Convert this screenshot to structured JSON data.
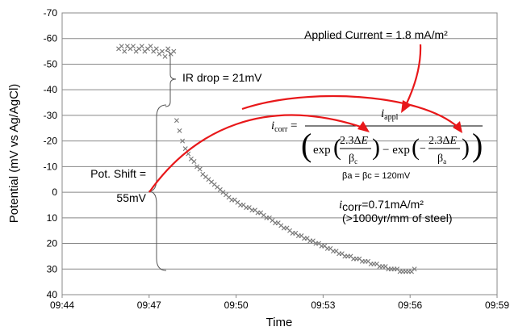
{
  "chart_data": {
    "type": "scatter",
    "xlabel": "Time",
    "ylabel": "Potential (mV vs Ag/AgCl)",
    "x_ticks": [
      "09:44",
      "09:47",
      "09:50",
      "09:53",
      "09:56",
      "09:59"
    ],
    "xlim_minutes": [
      0,
      15
    ],
    "ylim": [
      40,
      -70
    ],
    "y_reversed": true,
    "y_ticks": [
      -70,
      -60,
      -50,
      -40,
      -30,
      -20,
      -10,
      0,
      10,
      20,
      30,
      40
    ],
    "grid": "horizontal",
    "series": [
      {
        "marker": "x",
        "color": "#777777",
        "x_unit": "minutes after 09:44",
        "points": [
          [
            1.95,
            -56
          ],
          [
            2.05,
            -57
          ],
          [
            2.15,
            -55
          ],
          [
            2.25,
            -57
          ],
          [
            2.35,
            -56
          ],
          [
            2.45,
            -57
          ],
          [
            2.55,
            -55
          ],
          [
            2.65,
            -56
          ],
          [
            2.75,
            -57
          ],
          [
            2.85,
            -55
          ],
          [
            2.95,
            -56
          ],
          [
            3.05,
            -57
          ],
          [
            3.15,
            -55
          ],
          [
            3.25,
            -56
          ],
          [
            3.35,
            -54
          ],
          [
            3.45,
            -55
          ],
          [
            3.55,
            -53
          ],
          [
            3.65,
            -56
          ],
          [
            3.75,
            -54
          ],
          [
            3.85,
            -55
          ],
          [
            3.95,
            -28
          ],
          [
            4.05,
            -24
          ],
          [
            4.15,
            -20
          ],
          [
            4.25,
            -17
          ],
          [
            4.35,
            -15
          ],
          [
            4.45,
            -13
          ],
          [
            4.55,
            -12
          ],
          [
            4.65,
            -10
          ],
          [
            4.75,
            -9
          ],
          [
            4.85,
            -7
          ],
          [
            4.95,
            -6
          ],
          [
            5.05,
            -5
          ],
          [
            5.15,
            -4
          ],
          [
            5.25,
            -3
          ],
          [
            5.35,
            -2
          ],
          [
            5.45,
            -1
          ],
          [
            5.55,
            0
          ],
          [
            5.65,
            1
          ],
          [
            5.75,
            2
          ],
          [
            5.85,
            3
          ],
          [
            5.95,
            3
          ],
          [
            6.05,
            4
          ],
          [
            6.15,
            5
          ],
          [
            6.25,
            5
          ],
          [
            6.35,
            6
          ],
          [
            6.45,
            6
          ],
          [
            6.55,
            7
          ],
          [
            6.65,
            7
          ],
          [
            6.75,
            8
          ],
          [
            6.85,
            8
          ],
          [
            6.95,
            9
          ],
          [
            7.05,
            10
          ],
          [
            7.15,
            10
          ],
          [
            7.25,
            11
          ],
          [
            7.35,
            12
          ],
          [
            7.45,
            12
          ],
          [
            7.55,
            13
          ],
          [
            7.65,
            14
          ],
          [
            7.75,
            14
          ],
          [
            7.85,
            15
          ],
          [
            7.95,
            16
          ],
          [
            8.05,
            16
          ],
          [
            8.15,
            17
          ],
          [
            8.25,
            17
          ],
          [
            8.35,
            18
          ],
          [
            8.45,
            18
          ],
          [
            8.55,
            19
          ],
          [
            8.65,
            19
          ],
          [
            8.75,
            20
          ],
          [
            8.85,
            20
          ],
          [
            8.95,
            21
          ],
          [
            9.05,
            21
          ],
          [
            9.15,
            22
          ],
          [
            9.25,
            22
          ],
          [
            9.35,
            23
          ],
          [
            9.45,
            23
          ],
          [
            9.55,
            24
          ],
          [
            9.65,
            24
          ],
          [
            9.75,
            25
          ],
          [
            9.85,
            25
          ],
          [
            9.95,
            25
          ],
          [
            10.05,
            26
          ],
          [
            10.15,
            26
          ],
          [
            10.25,
            26
          ],
          [
            10.35,
            27
          ],
          [
            10.45,
            27
          ],
          [
            10.55,
            27
          ],
          [
            10.65,
            28
          ],
          [
            10.75,
            28
          ],
          [
            10.85,
            28
          ],
          [
            10.95,
            29
          ],
          [
            11.05,
            29
          ],
          [
            11.15,
            29
          ],
          [
            11.25,
            30
          ],
          [
            11.35,
            30
          ],
          [
            11.45,
            30
          ],
          [
            11.55,
            30
          ],
          [
            11.65,
            31
          ],
          [
            11.75,
            31
          ],
          [
            11.85,
            31
          ],
          [
            11.95,
            31
          ],
          [
            12.05,
            31
          ],
          [
            12.15,
            30
          ]
        ]
      }
    ],
    "annotations": {
      "applied_current": "Applied Current = 1.8 mA/m²",
      "ir_drop": "IR drop = 21mV",
      "pot_shift_line1": "Pot. Shift =",
      "pot_shift_line2": "55mV",
      "icorr_result_line1": "=0.71mA/m²",
      "icorr_result_line2": "(>1000yr/mm of steel)",
      "beta_eq": "βa = βc = 120mV",
      "arrow_color": "#e8181a"
    }
  }
}
